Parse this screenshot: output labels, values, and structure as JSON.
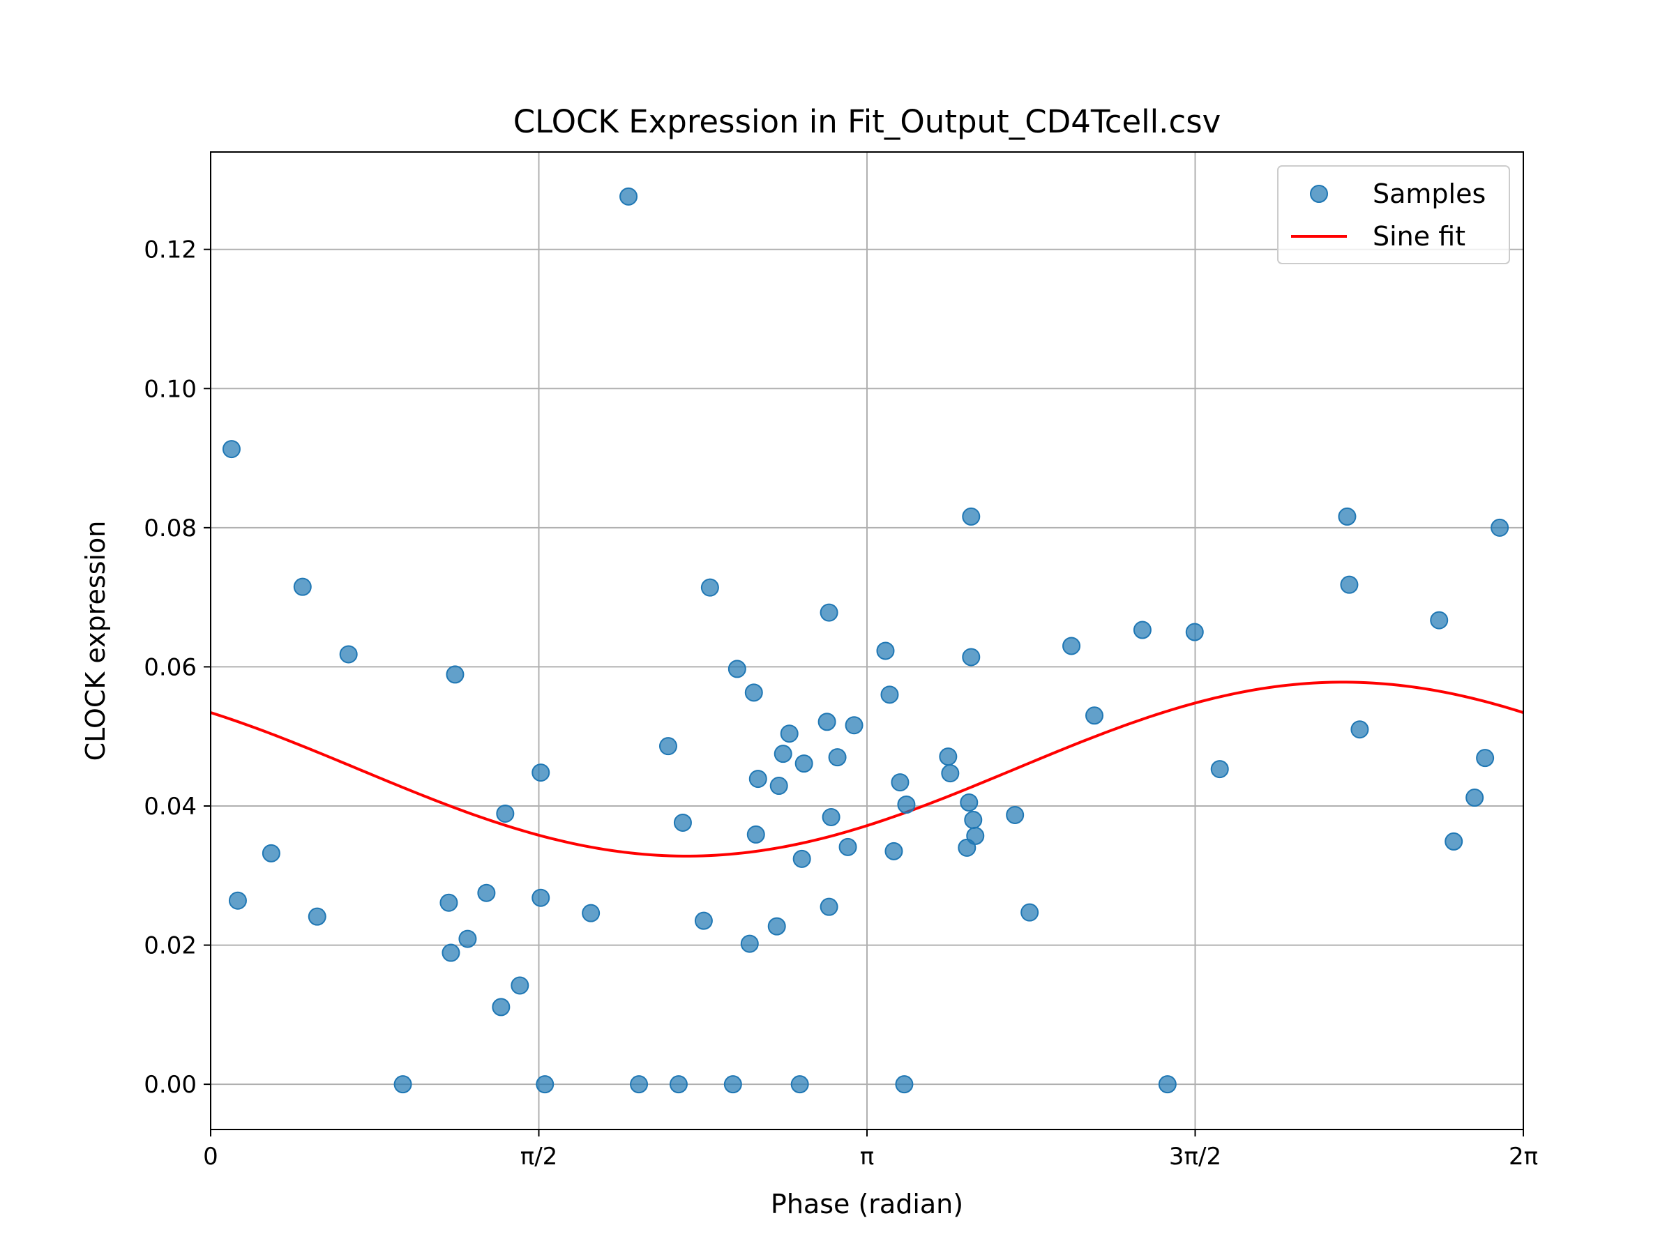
{
  "chart_data": {
    "type": "scatter",
    "title": "CLOCK Expression in Fit_Output_CD4Tcell.csv",
    "xlabel": "Phase (radian)",
    "ylabel": "CLOCK expression",
    "xlim": [
      0,
      6.2832
    ],
    "ylim": [
      -0.0065,
      0.134
    ],
    "grid": true,
    "legend_position": "top-right",
    "x_ticks": [
      {
        "value": 0,
        "label": "0"
      },
      {
        "value": 1.5708,
        "label": "π/2"
      },
      {
        "value": 3.1416,
        "label": "π"
      },
      {
        "value": 4.7124,
        "label": "3π/2"
      },
      {
        "value": 6.2832,
        "label": "2π"
      }
    ],
    "y_ticks": [
      {
        "value": 0.0,
        "label": "0.00"
      },
      {
        "value": 0.02,
        "label": "0.02"
      },
      {
        "value": 0.04,
        "label": "0.04"
      },
      {
        "value": 0.06,
        "label": "0.06"
      },
      {
        "value": 0.08,
        "label": "0.08"
      },
      {
        "value": 0.1,
        "label": "0.10"
      },
      {
        "value": 0.12,
        "label": "0.12"
      }
    ],
    "series": [
      {
        "name": "Samples",
        "kind": "scatter",
        "color": "#1f77b4",
        "points": [
          [
            0.1,
            0.0913
          ],
          [
            0.13,
            0.0264
          ],
          [
            0.29,
            0.0332
          ],
          [
            0.44,
            0.0715
          ],
          [
            0.51,
            0.0241
          ],
          [
            0.66,
            0.0618
          ],
          [
            0.92,
            0.0
          ],
          [
            1.14,
            0.0261
          ],
          [
            1.15,
            0.0189
          ],
          [
            1.17,
            0.0589
          ],
          [
            1.23,
            0.0209
          ],
          [
            1.32,
            0.0275
          ],
          [
            1.39,
            0.0111
          ],
          [
            1.41,
            0.0389
          ],
          [
            1.48,
            0.0142
          ],
          [
            1.58,
            0.0268
          ],
          [
            1.58,
            0.0448
          ],
          [
            1.6,
            0.0
          ],
          [
            1.82,
            0.0246
          ],
          [
            2.0,
            0.1276
          ],
          [
            2.05,
            0.0
          ],
          [
            2.19,
            0.0486
          ],
          [
            2.24,
            0.0
          ],
          [
            2.26,
            0.0376
          ],
          [
            2.36,
            0.0235
          ],
          [
            2.39,
            0.0714
          ],
          [
            2.5,
            0.0
          ],
          [
            2.52,
            0.0597
          ],
          [
            2.58,
            0.0202
          ],
          [
            2.6,
            0.0563
          ],
          [
            2.61,
            0.0359
          ],
          [
            2.62,
            0.0439
          ],
          [
            2.71,
            0.0227
          ],
          [
            2.72,
            0.0429
          ],
          [
            2.74,
            0.0475
          ],
          [
            2.77,
            0.0504
          ],
          [
            2.82,
            0.0
          ],
          [
            2.83,
            0.0324
          ],
          [
            2.84,
            0.0461
          ],
          [
            2.95,
            0.0521
          ],
          [
            2.96,
            0.0678
          ],
          [
            2.96,
            0.0255
          ],
          [
            2.97,
            0.0384
          ],
          [
            3.0,
            0.047
          ],
          [
            3.05,
            0.0341
          ],
          [
            3.08,
            0.0516
          ],
          [
            3.23,
            0.0623
          ],
          [
            3.25,
            0.056
          ],
          [
            3.27,
            0.0335
          ],
          [
            3.3,
            0.0434
          ],
          [
            3.32,
            0.0
          ],
          [
            3.33,
            0.0402
          ],
          [
            3.53,
            0.0471
          ],
          [
            3.54,
            0.0447
          ],
          [
            3.62,
            0.034
          ],
          [
            3.63,
            0.0405
          ],
          [
            3.64,
            0.0816
          ],
          [
            3.64,
            0.0614
          ],
          [
            3.65,
            0.038
          ],
          [
            3.66,
            0.0357
          ],
          [
            3.85,
            0.0387
          ],
          [
            3.92,
            0.0247
          ],
          [
            4.12,
            0.063
          ],
          [
            4.23,
            0.053
          ],
          [
            4.46,
            0.0653
          ],
          [
            4.58,
            0.0
          ],
          [
            4.71,
            0.065
          ],
          [
            4.83,
            0.0453
          ],
          [
            5.44,
            0.0816
          ],
          [
            5.45,
            0.0718
          ],
          [
            5.5,
            0.051
          ],
          [
            5.88,
            0.0667
          ],
          [
            5.95,
            0.0349
          ],
          [
            6.05,
            0.0412
          ],
          [
            6.1,
            0.0469
          ],
          [
            6.17,
            0.08
          ]
        ]
      },
      {
        "name": "Sine fit",
        "kind": "line",
        "color": "#ff0000",
        "model": {
          "mean": 0.0453,
          "amplitude": 0.0125,
          "phase": 5.42
        }
      }
    ]
  }
}
